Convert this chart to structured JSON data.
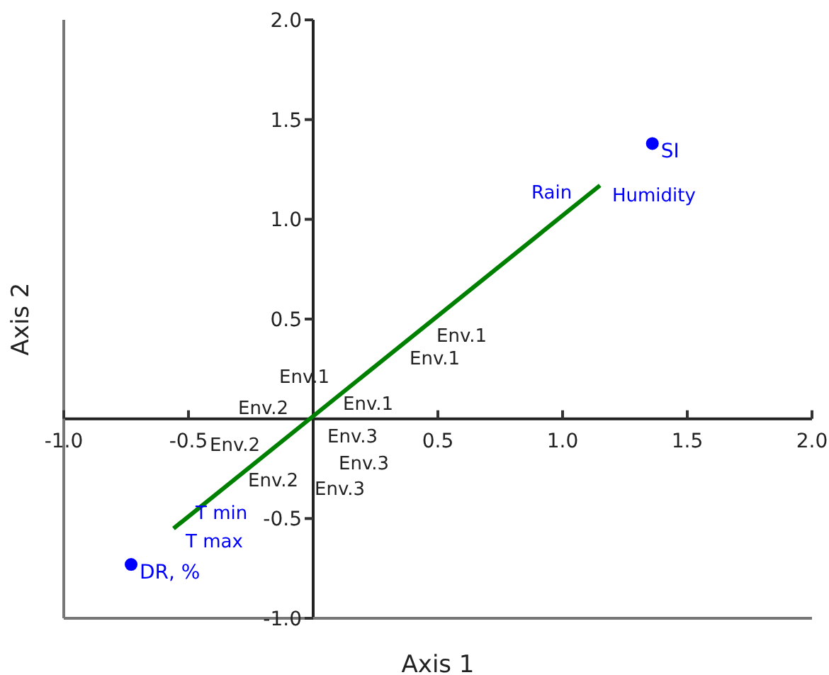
{
  "chart_data": {
    "type": "scatter",
    "xlabel": "Axis 1",
    "ylabel": "Axis 2",
    "xlim": [
      -1,
      2
    ],
    "ylim": [
      -1,
      2
    ],
    "xticks": [
      {
        "value": -1,
        "label": "-1.0"
      },
      {
        "value": -0.5,
        "label": "-0.5"
      },
      {
        "value": 0.5,
        "label": "0.5"
      },
      {
        "value": 1,
        "label": "1.0"
      },
      {
        "value": 1.5,
        "label": "1.5"
      },
      {
        "value": 2,
        "label": "2.0"
      }
    ],
    "yticks": [
      {
        "value": -1,
        "label": "-1.0"
      },
      {
        "value": -0.5,
        "label": "-0.5"
      },
      {
        "value": 0.5,
        "label": "0.5"
      },
      {
        "value": 1,
        "label": "1.0"
      },
      {
        "value": 1.5,
        "label": "1.5"
      },
      {
        "value": 2,
        "label": "2.0"
      }
    ],
    "marker": "circle",
    "series": [
      {
        "type": "line",
        "color": "#008000",
        "x": [
          -0.56,
          1.15
        ],
        "values": [
          -0.55,
          1.17
        ],
        "marker": "none"
      },
      {
        "name": "SI",
        "color": "#0000ff",
        "x": [
          1.36
        ],
        "values": [
          1.38
        ]
      },
      {
        "name": "DR, %",
        "color": "#0000ff",
        "x": [
          -0.73
        ],
        "values": [
          -0.73
        ]
      }
    ],
    "annotations": [
      "Env.1",
      "Env.1",
      "Env.1",
      "Env.2",
      "Env.1",
      "Env.2",
      "Env.3",
      "Env.3",
      "Env.2",
      "Env.3",
      "Rain",
      "Humidity",
      "T min",
      "T max"
    ]
  }
}
